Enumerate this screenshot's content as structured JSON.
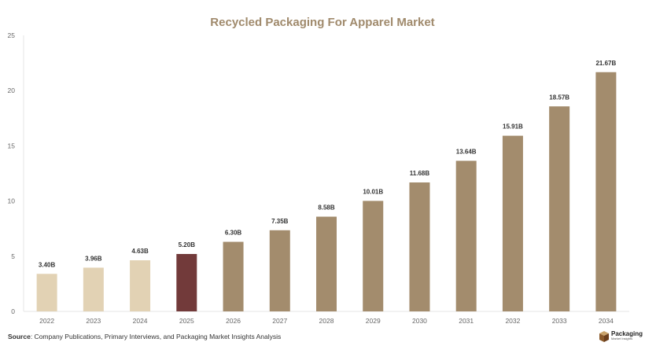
{
  "title": "Recycled Packaging For Apparel Market",
  "source": {
    "label": "Source",
    "text": ": Company Publications, Primary Interviews, and Packaging Market Insights Analysis"
  },
  "logo": {
    "main": "Packaging",
    "sub": "Market Insights"
  },
  "colors": {
    "historical": "#e2d2b4",
    "current": "#723a3a",
    "forecast": "#a38c6d",
    "axis_text": "#666666",
    "title": "#a08a6c"
  },
  "chart_data": {
    "type": "bar",
    "title": "Recycled Packaging For Apparel Market",
    "categories": [
      "2022",
      "2023",
      "2024",
      "2025",
      "2026",
      "2027",
      "2028",
      "2029",
      "2030",
      "2031",
      "2032",
      "2033",
      "2034"
    ],
    "values": [
      3.4,
      3.96,
      4.63,
      5.2,
      6.3,
      7.35,
      8.58,
      10.01,
      11.68,
      13.64,
      15.91,
      18.57,
      21.67
    ],
    "data_labels": [
      "3.40B",
      "3.96B",
      "4.63B",
      "5.20B",
      "6.30B",
      "7.35B",
      "8.58B",
      "10.01B",
      "11.68B",
      "13.64B",
      "15.91B",
      "18.57B",
      "21.67B"
    ],
    "bar_groups": [
      "historical",
      "historical",
      "historical",
      "current",
      "forecast",
      "forecast",
      "forecast",
      "forecast",
      "forecast",
      "forecast",
      "forecast",
      "forecast",
      "forecast"
    ],
    "ylim": [
      0,
      25
    ],
    "yticks": [
      0,
      5,
      10,
      15,
      20,
      25
    ],
    "xlabel": "",
    "ylabel": "",
    "grid": false,
    "legend": "none"
  }
}
